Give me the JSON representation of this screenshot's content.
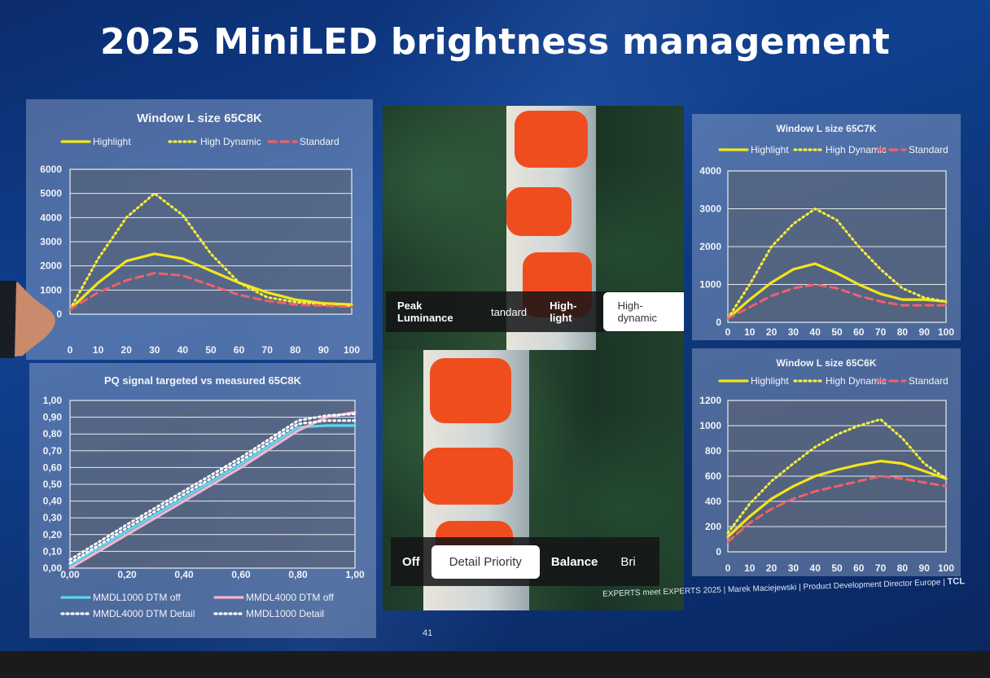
{
  "slide": {
    "title": "2025 MiniLED brightness management",
    "footer": "EXPERTS meet EXPERTS 2025 | Marek Maciejewski | Product Development Director Europe |",
    "brand": "TCL",
    "page_number": "41"
  },
  "menu_top": {
    "label": "Peak Luminance",
    "items": [
      "tandard",
      "High-light"
    ],
    "selected": "High-dynamic"
  },
  "menu_bottom": {
    "items": [
      "Off"
    ],
    "selected": "Detail Priority",
    "items_after": [
      "Balance",
      "Bri"
    ]
  },
  "colors": {
    "highlight": "#f3e51a",
    "high_dynamic": "#f6ee3a",
    "standard": "#f0606a",
    "cyan": "#5fd6ee",
    "pink": "#f3b5d0",
    "white": "#ffffff"
  },
  "chart_data": [
    {
      "type": "line",
      "title": "Window L size 65C8K",
      "x": [
        0,
        10,
        20,
        30,
        40,
        50,
        60,
        70,
        80,
        90,
        100
      ],
      "xlim": [
        0,
        100
      ],
      "ylim": [
        0,
        6000
      ],
      "xticks": [
        "0",
        "10",
        "20",
        "30",
        "40",
        "50",
        "60",
        "70",
        "80",
        "90",
        "100"
      ],
      "yticks": [
        "0",
        "1000",
        "2000",
        "3000",
        "4000",
        "5000",
        "6000"
      ],
      "series": [
        {
          "name": "Highlight",
          "style": "solid",
          "color": "#f3e51a",
          "values": [
            200,
            1300,
            2200,
            2500,
            2300,
            1800,
            1300,
            900,
            600,
            450,
            400
          ]
        },
        {
          "name": "High Dynamic",
          "style": "dotted",
          "color": "#f6ee3a",
          "values": [
            200,
            2300,
            4000,
            5000,
            4100,
            2500,
            1300,
            700,
            500,
            400,
            350
          ]
        },
        {
          "name": "Standard",
          "style": "dashed",
          "color": "#f0606a",
          "values": [
            200,
            900,
            1400,
            1700,
            1600,
            1200,
            800,
            550,
            400,
            350,
            300
          ]
        }
      ]
    },
    {
      "type": "line",
      "title": "PQ signal targeted vs measured 65C8K",
      "x": [
        0,
        0.2,
        0.4,
        0.6,
        0.8,
        0.9,
        1.0
      ],
      "xlim": [
        0,
        1
      ],
      "ylim": [
        0,
        1
      ],
      "xticks": [
        "0,00",
        "0,20",
        "0,40",
        "0,60",
        "0,80",
        "1,00"
      ],
      "yticks": [
        "0,00",
        "0,10",
        "0,20",
        "0,30",
        "0,40",
        "0,50",
        "0,60",
        "0,70",
        "0,80",
        "0,90",
        "1,00"
      ],
      "series": [
        {
          "name": "MMDL1000 DTM off",
          "style": "solid",
          "color": "#5fd6ee",
          "values": [
            0.02,
            0.22,
            0.42,
            0.62,
            0.84,
            0.85,
            0.85
          ]
        },
        {
          "name": "MMDL4000 DTM off",
          "style": "solid",
          "color": "#f3b5d0",
          "values": [
            0.0,
            0.2,
            0.4,
            0.6,
            0.82,
            0.9,
            0.93
          ]
        },
        {
          "name": "MMDL4000 DTM Detail",
          "style": "dotted",
          "color": "#ffffff",
          "values": [
            0.05,
            0.26,
            0.46,
            0.66,
            0.88,
            0.91,
            0.92
          ]
        },
        {
          "name": "MMDL1000 Detail",
          "style": "dotted",
          "color": "#ffffff",
          "values": [
            0.03,
            0.24,
            0.44,
            0.64,
            0.86,
            0.88,
            0.88
          ]
        }
      ]
    },
    {
      "type": "line",
      "title": "Window L size 65C7K",
      "x": [
        0,
        10,
        20,
        30,
        40,
        50,
        60,
        70,
        80,
        90,
        100
      ],
      "xlim": [
        0,
        100
      ],
      "ylim": [
        0,
        4000
      ],
      "xticks": [
        "0",
        "10",
        "20",
        "30",
        "40",
        "50",
        "60",
        "70",
        "80",
        "90",
        "100"
      ],
      "yticks": [
        "0",
        "1000",
        "2000",
        "3000",
        "4000"
      ],
      "series": [
        {
          "name": "Highlight",
          "style": "solid",
          "color": "#f3e51a",
          "values": [
            100,
            600,
            1050,
            1400,
            1550,
            1300,
            1000,
            750,
            600,
            600,
            550
          ]
        },
        {
          "name": "High Dynamic",
          "style": "dotted",
          "color": "#f6ee3a",
          "values": [
            100,
            1000,
            2000,
            2600,
            3000,
            2700,
            2000,
            1400,
            900,
            650,
            550
          ]
        },
        {
          "name": "Standard",
          "style": "dashed",
          "color": "#f0606a",
          "values": [
            100,
            400,
            700,
            900,
            1000,
            900,
            700,
            550,
            450,
            450,
            450
          ]
        }
      ]
    },
    {
      "type": "line",
      "title": "Window L size 65C6K",
      "x": [
        0,
        10,
        20,
        30,
        40,
        50,
        60,
        70,
        80,
        90,
        100
      ],
      "xlim": [
        0,
        100
      ],
      "ylim": [
        0,
        1200
      ],
      "xticks": [
        "0",
        "10",
        "20",
        "30",
        "40",
        "50",
        "60",
        "70",
        "80",
        "90",
        "100"
      ],
      "yticks": [
        "0",
        "200",
        "400",
        "600",
        "800",
        "1000",
        "1200"
      ],
      "series": [
        {
          "name": "Highlight",
          "style": "solid",
          "color": "#f3e51a",
          "values": [
            120,
            280,
            420,
            520,
            600,
            650,
            690,
            720,
            700,
            640,
            580
          ]
        },
        {
          "name": "High Dynamic",
          "style": "dotted",
          "color": "#f6ee3a",
          "values": [
            150,
            380,
            560,
            700,
            830,
            930,
            1000,
            1050,
            900,
            700,
            580
          ]
        },
        {
          "name": "Standard",
          "style": "dashed",
          "color": "#f0606a",
          "values": [
            80,
            230,
            340,
            420,
            480,
            520,
            560,
            600,
            580,
            550,
            520
          ]
        }
      ]
    }
  ]
}
